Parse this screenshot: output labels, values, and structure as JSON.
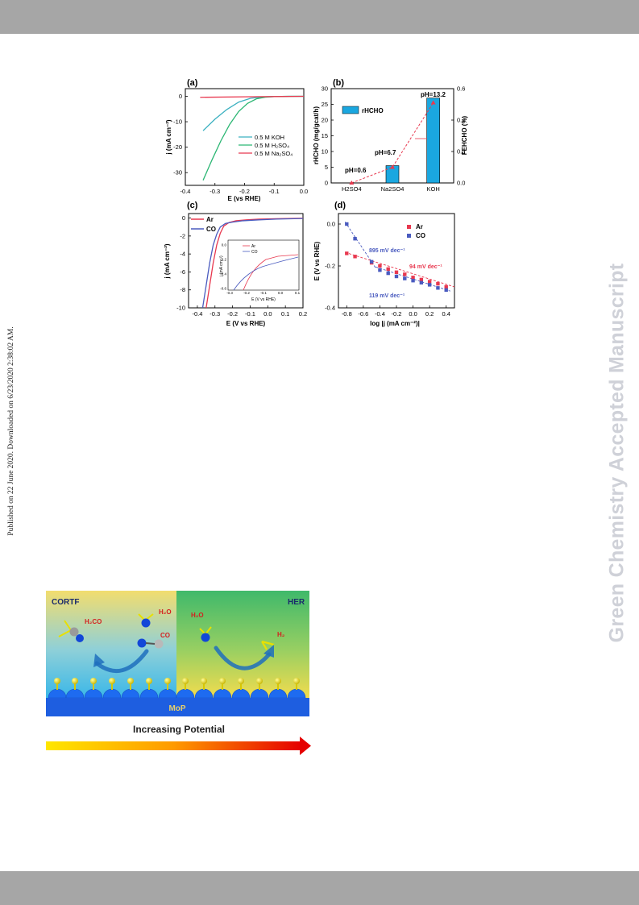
{
  "side_note": "Published on 22 June 2020. Downloaded on 6/23/2020 2:38:02 AM.",
  "watermark": "Green Chemistry Accepted Manuscript",
  "colors": {
    "red": "#e8384f",
    "green": "#2bb673",
    "teal": "#3ab0c0",
    "blue": "#4a5bbf",
    "bar": "#1aa7e0"
  },
  "chart_data": [
    {
      "panel": "(a)",
      "type": "line",
      "xlabel": "E (vs RHE)",
      "ylabel": "j (mA cm⁻²)",
      "xlim": [
        -0.4,
        0.0
      ],
      "ylim": [
        -35,
        3
      ],
      "xticks": [
        "-0.4",
        "-0.3",
        "-0.2",
        "-0.1",
        "0.0"
      ],
      "yticks": [
        "0",
        "-10",
        "-20",
        "-30"
      ],
      "series": [
        {
          "name": "0.5 M KOH",
          "color": "#3ab0c0",
          "x": [
            -0.34,
            -0.3,
            -0.26,
            -0.22,
            -0.18,
            -0.14,
            -0.1,
            -0.05,
            0
          ],
          "y": [
            -13.5,
            -9,
            -5.2,
            -2.3,
            -0.8,
            -0.25,
            -0.1,
            0,
            0
          ]
        },
        {
          "name": "0.5 M H₂SO₄",
          "color": "#2bb673",
          "x": [
            -0.34,
            -0.31,
            -0.28,
            -0.25,
            -0.22,
            -0.19,
            -0.16,
            -0.13,
            -0.1,
            -0.05,
            0
          ],
          "y": [
            -33,
            -25,
            -17.5,
            -11,
            -6,
            -2.8,
            -1,
            -0.35,
            -0.1,
            0,
            0
          ]
        },
        {
          "name": "0.5 M Na₂SO₄",
          "color": "#e8384f",
          "x": [
            -0.35,
            -0.2,
            -0.1,
            0
          ],
          "y": [
            -0.4,
            -0.2,
            -0.1,
            0
          ]
        }
      ]
    },
    {
      "panel": "(b)",
      "type": "bar",
      "categories": [
        "H2SO4",
        "Na2SO4",
        "KOH"
      ],
      "values": [
        0,
        5.5,
        27
      ],
      "ylabel": "rHCHO (mg/gcat/h)",
      "y2label": "FEHCHO (%)",
      "ylim": [
        0,
        30
      ],
      "y2lim": [
        0,
        0.6
      ],
      "yticks": [
        "0",
        "5",
        "10",
        "15",
        "20",
        "25",
        "30"
      ],
      "y2ticks": [
        "0.0",
        "0.2",
        "0.4",
        "0.6"
      ],
      "legend": "rHCHO",
      "fe_values": [
        0,
        0.1,
        0.51
      ],
      "annotations": [
        "pH=0.6",
        "pH=6.7",
        "pH=13.2"
      ]
    },
    {
      "panel": "(c)",
      "type": "line",
      "xlabel": "E (V vs RHE)",
      "ylabel": "j (mA cm⁻²)",
      "xlim": [
        -0.45,
        0.2
      ],
      "ylim": [
        -10,
        0.5
      ],
      "xticks": [
        "-0.4",
        "-0.3",
        "-0.2",
        "-0.1",
        "0.0",
        "0.1",
        "0.2"
      ],
      "yticks": [
        "0",
        "-2",
        "-4",
        "-6",
        "-8",
        "-10"
      ],
      "series": [
        {
          "name": "Ar",
          "color": "#e8384f",
          "x": [
            -0.35,
            -0.33,
            -0.31,
            -0.29,
            -0.27,
            -0.25,
            -0.22,
            -0.18,
            -0.12,
            -0.05,
            0.05,
            0.2
          ],
          "y": [
            -10,
            -7.5,
            -5,
            -3,
            -1.7,
            -0.9,
            -0.5,
            -0.3,
            -0.2,
            -0.12,
            -0.07,
            -0.02
          ]
        },
        {
          "name": "CO",
          "color": "#4a5bbf",
          "x": [
            -0.37,
            -0.35,
            -0.33,
            -0.31,
            -0.29,
            -0.27,
            -0.24,
            -0.2,
            -0.14,
            -0.05,
            0.05,
            0.2
          ],
          "y": [
            -10,
            -7.5,
            -5,
            -3,
            -1.8,
            -1,
            -0.6,
            -0.45,
            -0.3,
            -0.2,
            -0.12,
            -0.05
          ]
        }
      ],
      "inset": {
        "xlabel": "E (V vs RHE)",
        "ylabel": "j (mA cm⁻²)",
        "xticks": [
          "-0.3",
          "-0.2",
          "-0.1",
          "0.0",
          "0.1"
        ],
        "yticks": [
          "0.0",
          "-0.2",
          "-0.4",
          "-0.6"
        ],
        "legend": [
          "Ar",
          "CO"
        ]
      }
    },
    {
      "panel": "(d)",
      "type": "scatter",
      "xlabel": "log |j (mA cm⁻²)|",
      "ylabel": "E (V vs RHE)",
      "xlim": [
        -0.9,
        0.5
      ],
      "ylim": [
        -0.4,
        0.05
      ],
      "xticks": [
        "-0.8",
        "-0.6",
        "-0.4",
        "-0.2",
        "0.0",
        "0.2",
        "0.4"
      ],
      "yticks": [
        "0.0",
        "-0.2",
        "-0.4"
      ],
      "series": [
        {
          "name": "Ar",
          "color": "#e8384f",
          "x": [
            -0.8,
            -0.7,
            -0.5,
            -0.4,
            -0.3,
            -0.2,
            -0.1,
            0.0,
            0.1,
            0.2,
            0.3,
            0.4
          ],
          "y": [
            -0.14,
            -0.155,
            -0.185,
            -0.2,
            -0.215,
            -0.23,
            -0.24,
            -0.255,
            -0.265,
            -0.275,
            -0.285,
            -0.3
          ]
        },
        {
          "name": "CO",
          "color": "#4a5bbf",
          "x": [
            -0.8,
            -0.7,
            -0.5,
            -0.4,
            -0.3,
            -0.2,
            -0.1,
            0.0,
            0.1,
            0.2,
            0.3,
            0.4
          ],
          "y": [
            0.0,
            -0.07,
            -0.18,
            -0.22,
            -0.235,
            -0.25,
            -0.26,
            -0.27,
            -0.28,
            -0.29,
            -0.305,
            -0.315
          ]
        }
      ],
      "annotations": [
        "895 mV dec⁻¹",
        "94 mV dec⁻¹",
        "119 mV dec⁻¹"
      ]
    }
  ],
  "toc": {
    "left_label": "CORTF",
    "right_label": "HER",
    "h2co": "H₂CO",
    "h2o_left": "H₂O",
    "co": "CO",
    "h2o_right": "H₂O",
    "h2": "H₂",
    "substrate": "MoP",
    "arrow_caption": "Increasing Potential"
  }
}
